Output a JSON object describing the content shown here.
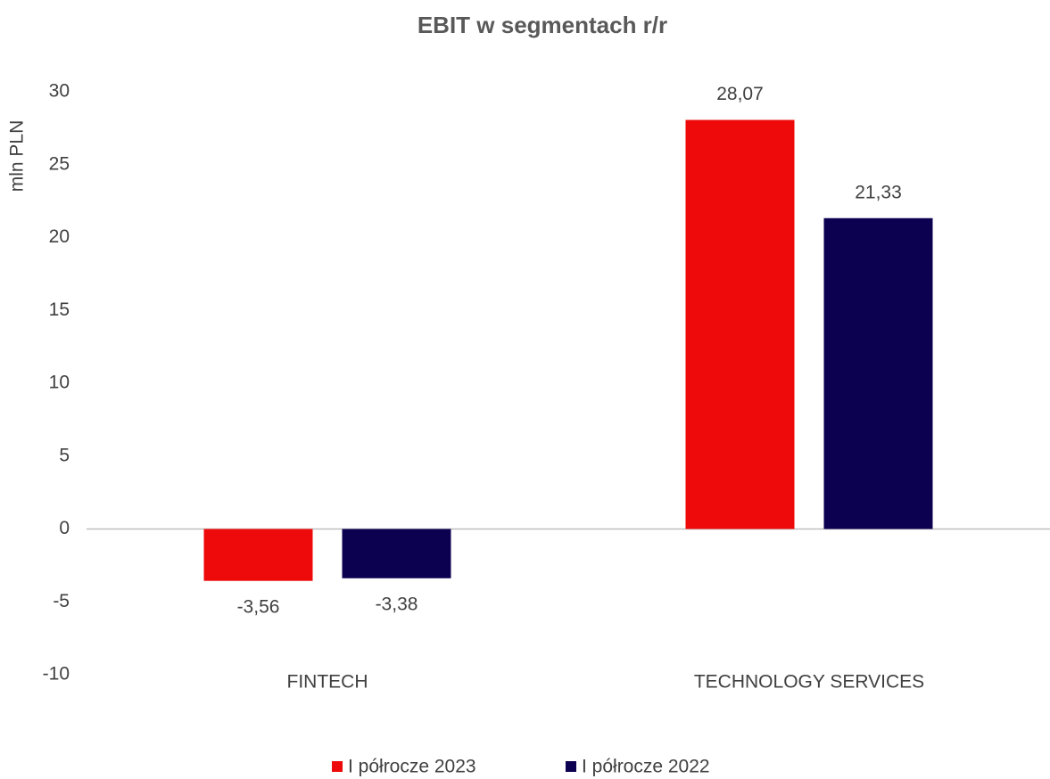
{
  "chart_data": {
    "type": "bar",
    "title": "EBIT w segmentach r/r",
    "y_label": "mln PLN",
    "categories": [
      "FINTECH",
      "TECHNOLOGY SERVICES"
    ],
    "series": [
      {
        "name": "I półrocze 2023",
        "color": "#ee0a0a",
        "values": [
          -3.56,
          28.07
        ],
        "value_labels": [
          "-3,56",
          "28,07"
        ]
      },
      {
        "name": "I półrocze 2022",
        "color": "#0c0050",
        "values": [
          -3.38,
          21.33
        ],
        "value_labels": [
          "-3,38",
          "21,33"
        ]
      }
    ],
    "ylim": [
      -10,
      30
    ],
    "yticks": [
      -10,
      -5,
      0,
      5,
      10,
      15,
      20,
      25,
      30
    ],
    "grid": false,
    "legend": "bottom"
  }
}
